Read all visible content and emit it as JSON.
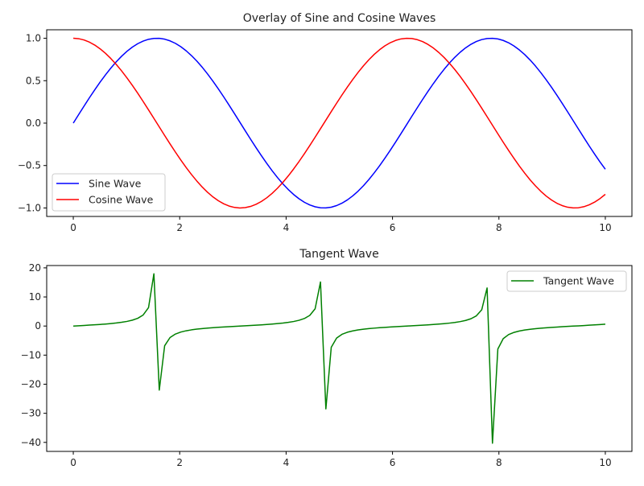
{
  "chart_data": [
    {
      "type": "line",
      "title": "Overlay of Sine and Cosine Waves",
      "xlabel": "",
      "ylabel": "",
      "x": {
        "start": 0,
        "stop": 10,
        "num": 100
      },
      "xlim": [
        -0.5,
        10.5
      ],
      "ylim": [
        -1.1,
        1.1
      ],
      "xticks": [
        0,
        2,
        4,
        6,
        8,
        10
      ],
      "xtick_labels": [
        "0",
        "2",
        "4",
        "6",
        "8",
        "10"
      ],
      "yticks": [
        1.0,
        0.5,
        0.0,
        -0.5,
        -1.0
      ],
      "ytick_labels": [
        "1.0",
        "0.5",
        "0.0",
        "−0.5",
        "−1.0"
      ],
      "grid": false,
      "legend": "lower-left",
      "series": [
        {
          "name": "Sine Wave",
          "function": "sin",
          "color": "#0000ff"
        },
        {
          "name": "Cosine Wave",
          "function": "cos",
          "color": "#ff0000"
        }
      ]
    },
    {
      "type": "line",
      "title": "Tangent Wave",
      "xlabel": "",
      "ylabel": "",
      "x": {
        "start": 0,
        "stop": 10,
        "num": 100
      },
      "xlim": [
        -0.5,
        10.5
      ],
      "ylim": [
        -43.1,
        20.8
      ],
      "xticks": [
        0,
        2,
        4,
        6,
        8,
        10
      ],
      "xtick_labels": [
        "0",
        "2",
        "4",
        "6",
        "8",
        "10"
      ],
      "yticks": [
        20,
        10,
        0,
        -10,
        -20,
        -30,
        -40
      ],
      "ytick_labels": [
        "20",
        "10",
        "0",
        "−10",
        "−20",
        "−30",
        "−40"
      ],
      "grid": false,
      "legend": "upper-right",
      "series": [
        {
          "name": "Tangent Wave",
          "function": "tan",
          "color": "#008000"
        }
      ]
    }
  ]
}
